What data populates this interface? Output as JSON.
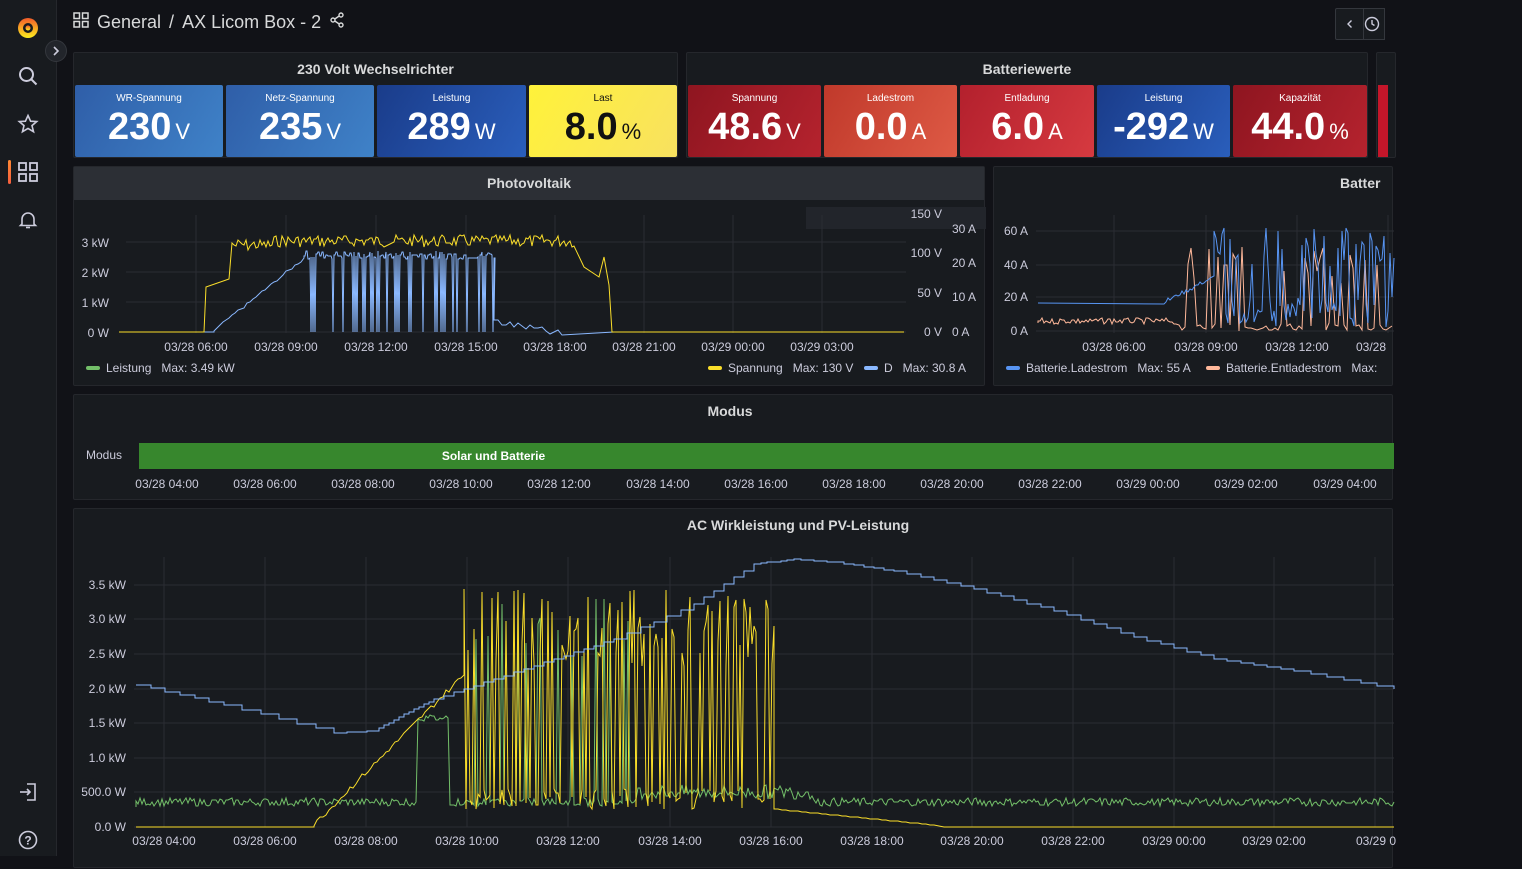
{
  "breadcrumb": {
    "folder": "General",
    "separator": "/",
    "dashboard": "AX Licom Box - 2"
  },
  "colors": {
    "green": "#73bf69",
    "yellow": "#fade2a",
    "blue": "#8ab8ff",
    "lightblue": "#5794f2",
    "peach": "#ffb89a",
    "modus_green": "#37872d"
  },
  "sidebar": {
    "icons": [
      "grafana-logo-icon",
      "search-icon",
      "star-icon",
      "dashboards-icon",
      "bell-icon",
      "sign-in-icon",
      "help-icon"
    ]
  },
  "wr_panel": {
    "title": "230 Volt Wechselrichter",
    "stats": [
      {
        "label": "WR-Spannung",
        "value": "230",
        "unit": "V"
      },
      {
        "label": "Netz-Spannung",
        "value": "235",
        "unit": "V"
      },
      {
        "label": "Leistung",
        "value": "289",
        "unit": "W"
      },
      {
        "label": "Last",
        "value": "8.0",
        "unit": "%"
      }
    ]
  },
  "bat_panel": {
    "title": "Batteriewerte",
    "stats": [
      {
        "label": "Spannung",
        "value": "48.6",
        "unit": "V"
      },
      {
        "label": "Ladestrom",
        "value": "0.0",
        "unit": "A"
      },
      {
        "label": "Entladung",
        "value": "6.0",
        "unit": "A"
      },
      {
        "label": "Leistung",
        "value": "-292",
        "unit": "W"
      },
      {
        "label": "Kapazität",
        "value": "44.0",
        "unit": "%"
      }
    ]
  },
  "pv_panel": {
    "title": "Photovoltaik",
    "y_left": [
      "3 kW",
      "2 kW",
      "1 kW",
      "0 W"
    ],
    "y_mid": [
      "150 V",
      "100 V",
      "50 V",
      "0 V"
    ],
    "y_right": [
      "30 A",
      "20 A",
      "10 A",
      "0 A"
    ],
    "x_ticks": [
      "03/28 06:00",
      "03/28 09:00",
      "03/28 12:00",
      "03/28 15:00",
      "03/28 18:00",
      "03/28 21:00",
      "03/29 00:00",
      "03/29 03:00"
    ],
    "legend": [
      {
        "name": "Leistung",
        "stat": "Max: 3.49 kW"
      },
      {
        "name": "Spannung",
        "stat": "Max: 130 V"
      },
      {
        "name": "D",
        "stat": "Max: 30.8 A"
      }
    ]
  },
  "battery_chart": {
    "title": "Batter",
    "y_ticks": [
      "60 A",
      "40 A",
      "20 A",
      "0 A"
    ],
    "x_ticks": [
      "03/28 06:00",
      "03/28 09:00",
      "03/28 12:00",
      "03/28"
    ],
    "legend": [
      {
        "name": "Batterie.Ladestrom",
        "stat": "Max: 55 A"
      },
      {
        "name": "Batterie.Entladestrom",
        "stat": "Max:"
      }
    ]
  },
  "modus_panel": {
    "title": "Modus",
    "row_label": "Modus",
    "bar_label": "Solar und Batterie",
    "x_ticks": [
      "03/28 04:00",
      "03/28 06:00",
      "03/28 08:00",
      "03/28 10:00",
      "03/28 12:00",
      "03/28 14:00",
      "03/28 16:00",
      "03/28 18:00",
      "03/28 20:00",
      "03/28 22:00",
      "03/29 00:00",
      "03/29 02:00",
      "03/29 04:00"
    ]
  },
  "ac_panel": {
    "title": "AC Wirkleistung und PV-Leistung",
    "y_ticks": [
      "3.5 kW",
      "3.0 kW",
      "2.5 kW",
      "2.0 kW",
      "1.5 kW",
      "1.0 kW",
      "500.0 W",
      "0.0 W"
    ],
    "x_ticks": [
      "03/28 04:00",
      "03/28 06:00",
      "03/28 08:00",
      "03/28 10:00",
      "03/28 12:00",
      "03/28 14:00",
      "03/28 16:00",
      "03/28 18:00",
      "03/28 20:00",
      "03/28 22:00",
      "03/29 00:00",
      "03/29 02:00",
      "03/29 0"
    ]
  }
}
